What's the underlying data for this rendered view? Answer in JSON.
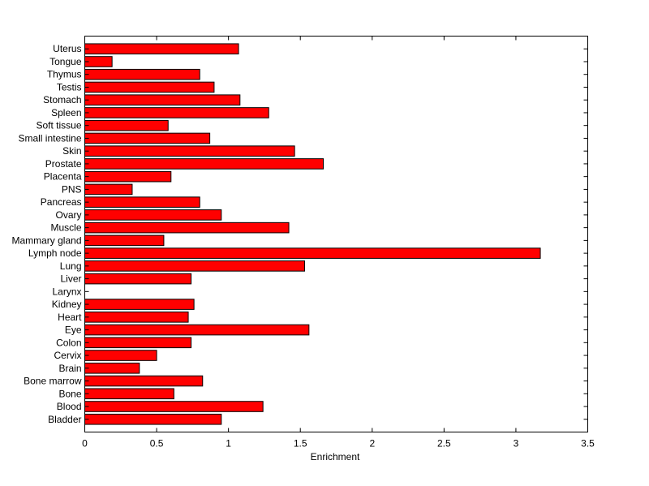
{
  "chart_data": {
    "type": "bar",
    "orientation": "horizontal",
    "title": "",
    "xlabel": "Enrichment",
    "ylabel": "",
    "xlim": [
      0,
      3.5
    ],
    "xticks": [
      "0",
      "0.5",
      "1",
      "1.5",
      "2",
      "2.5",
      "3",
      "3.5"
    ],
    "grid": false,
    "bar_color": "#ff0000",
    "categories": [
      "Bladder",
      "Blood",
      "Bone",
      "Bone marrow",
      "Brain",
      "Cervix",
      "Colon",
      "Eye",
      "Heart",
      "Kidney",
      "Larynx",
      "Liver",
      "Lung",
      "Lymph node",
      "Mammary gland",
      "Muscle",
      "Ovary",
      "Pancreas",
      "PNS",
      "Placenta",
      "Prostate",
      "Skin",
      "Small intestine",
      "Soft tissue",
      "Spleen",
      "Stomach",
      "Testis",
      "Thymus",
      "Tongue",
      "Uterus"
    ],
    "values": [
      0.95,
      1.24,
      0.62,
      0.82,
      0.38,
      0.5,
      0.74,
      1.56,
      0.72,
      0.76,
      0.0,
      0.74,
      1.53,
      3.17,
      0.55,
      1.42,
      0.95,
      0.8,
      0.33,
      0.6,
      1.66,
      1.46,
      0.87,
      0.58,
      1.28,
      1.08,
      0.9,
      0.8,
      0.19,
      1.07
    ]
  }
}
